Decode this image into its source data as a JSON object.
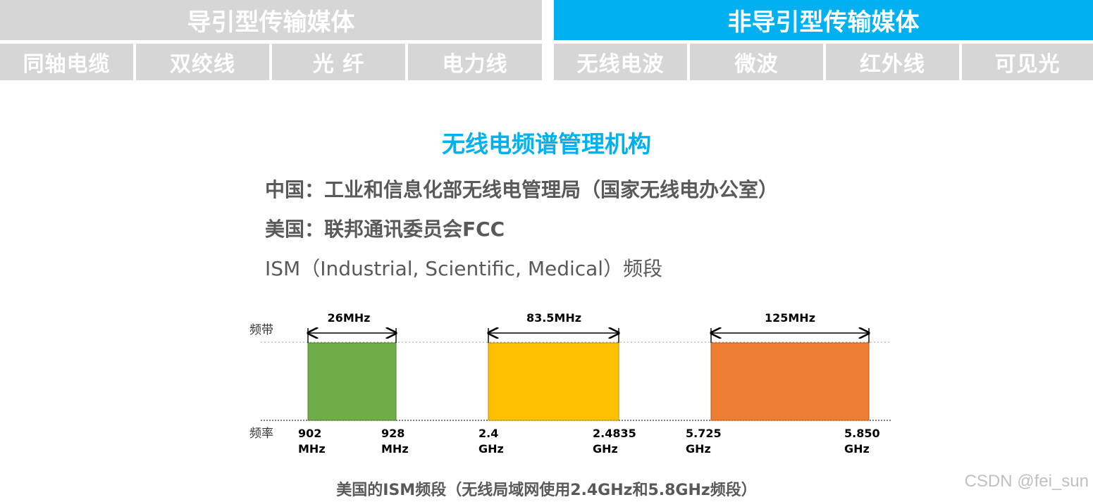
{
  "header": {
    "guided_title": "导引型传输媒体",
    "unguided_title": "非导引型传输媒体",
    "guided_items": [
      "同轴电缆",
      "双绞线",
      "光  纤",
      "电力线"
    ],
    "unguided_items": [
      "无线电波",
      "微波",
      "红外线",
      "可见光"
    ],
    "colors": {
      "gray": "#d6d6d6",
      "accent": "#00b0f0"
    }
  },
  "info": {
    "title": "无线电频谱管理机构",
    "china": "中国：工业和信息化部无线电管理局（国家无线电办公室）",
    "usa": "美国：联邦通讯委员会FCC",
    "ism": "ISM（Industrial, Scientific, Medical）频段"
  },
  "diagram": {
    "y_axis_label": "频带",
    "x_axis_label": "频率",
    "bands": [
      {
        "width_label": "26MHz",
        "start_value": "902",
        "start_unit": "MHz",
        "end_value": "928",
        "end_unit": "MHz",
        "color": "#70ad47"
      },
      {
        "width_label": "83.5MHz",
        "start_value": "2.4",
        "start_unit": "GHz",
        "end_value": "2.4835",
        "end_unit": "GHz",
        "color": "#ffc000"
      },
      {
        "width_label": "125MHz",
        "start_value": "5.725",
        "start_unit": "GHz",
        "end_value": "5.850",
        "end_unit": "GHz",
        "color": "#ed7d31"
      }
    ],
    "caption": "美国的ISM频段（无线局域网使用2.4GHz和5.8GHz频段）"
  },
  "watermark": "CSDN @fei_sun"
}
